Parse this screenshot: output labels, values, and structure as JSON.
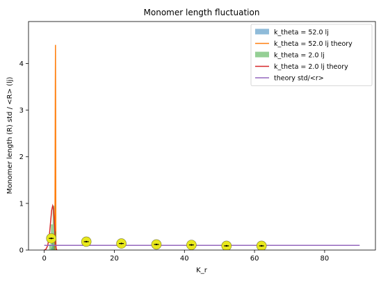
{
  "chart_data": {
    "type": "line",
    "title": "Monomer length fluctuation",
    "xlabel": "K_r",
    "ylabel": "Monomer length (R) std / <R> (lj)",
    "xlim": [
      -4.5,
      94.5
    ],
    "ylim": [
      0,
      4.9
    ],
    "xticks": [
      0,
      20,
      40,
      60,
      80
    ],
    "yticks": [
      0,
      1,
      2,
      3,
      4
    ],
    "grid": false,
    "legend_position": "top-right",
    "series": [
      {
        "name": "k_theta = 52.0 lj",
        "kind": "histogram",
        "color": "#1f77b4",
        "opacity": 0.5,
        "bins": [
          {
            "x0": 2.0,
            "x1": 2.3,
            "height": 0.05
          },
          {
            "x0": 2.3,
            "x1": 2.6,
            "height": 0.25
          },
          {
            "x0": 2.6,
            "x1": 2.9,
            "height": 0.1
          }
        ]
      },
      {
        "name": "k_theta = 52.0 lj theory",
        "kind": "line",
        "color": "#ff7f0e",
        "x": [
          2.8,
          2.9,
          3.0,
          3.05,
          3.1,
          3.15,
          3.2,
          3.25,
          3.3,
          3.35
        ],
        "y": [
          0.0,
          0.0,
          0.2,
          0.8,
          2.0,
          3.5,
          4.4,
          3.0,
          0.3,
          0.0
        ]
      },
      {
        "name": "k_theta = 2.0 lj",
        "kind": "histogram",
        "color": "#2ca02c",
        "opacity": 0.5,
        "bins": [
          {
            "x0": 1.4,
            "x1": 1.9,
            "height": 0.12
          },
          {
            "x0": 1.9,
            "x1": 2.4,
            "height": 0.55
          },
          {
            "x0": 2.4,
            "x1": 2.9,
            "height": 0.95
          },
          {
            "x0": 2.9,
            "x1": 3.4,
            "height": 0.4
          }
        ]
      },
      {
        "name": "k_theta = 2.0 lj theory",
        "kind": "line",
        "color": "#d62728",
        "x": [
          0.0,
          0.5,
          1.0,
          1.5,
          1.8,
          2.1,
          2.4,
          2.6,
          2.8,
          3.0,
          3.2,
          3.4,
          3.6
        ],
        "y": [
          0.0,
          0.02,
          0.1,
          0.35,
          0.6,
          0.85,
          0.95,
          0.9,
          0.7,
          0.4,
          0.15,
          0.03,
          0.0
        ]
      },
      {
        "name": "theory std/<r>",
        "kind": "line",
        "color": "#9467bd",
        "x": [
          0,
          90
        ],
        "y": [
          0.1,
          0.1
        ]
      },
      {
        "name": "",
        "kind": "scatter",
        "color": "#e8e81c",
        "x": [
          2,
          12,
          22,
          32,
          42,
          52,
          62
        ],
        "y": [
          0.25,
          0.18,
          0.14,
          0.12,
          0.11,
          0.09,
          0.09
        ]
      }
    ]
  }
}
